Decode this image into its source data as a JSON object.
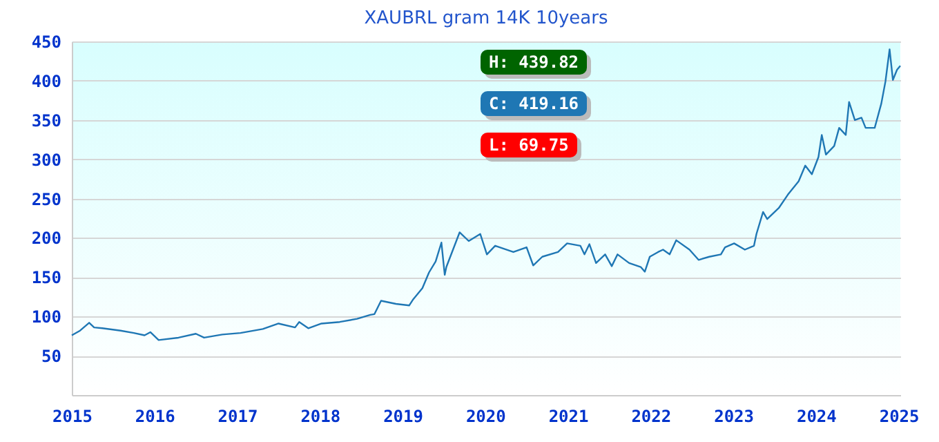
{
  "chart_data": {
    "type": "line",
    "title": "XAUBRL gram 14K 10years",
    "annotations": [
      "H: 439.82",
      "C: 419.16",
      "L: 69.75"
    ],
    "x": [
      2015.0,
      2015.1,
      2015.21,
      2015.27,
      2015.37,
      2015.59,
      2015.75,
      2015.88,
      2015.95,
      2016.05,
      2016.29,
      2016.5,
      2016.6,
      2016.82,
      2017.04,
      2017.31,
      2017.5,
      2017.7,
      2017.75,
      2017.86,
      2018.02,
      2018.24,
      2018.45,
      2018.61,
      2018.66,
      2018.74,
      2018.92,
      2019.08,
      2019.13,
      2019.24,
      2019.32,
      2019.4,
      2019.47,
      2019.51,
      2019.53,
      2019.69,
      2019.8,
      2019.94,
      2020.02,
      2020.12,
      2020.34,
      2020.5,
      2020.58,
      2020.69,
      2020.88,
      2020.99,
      2021.15,
      2021.2,
      2021.26,
      2021.34,
      2021.45,
      2021.53,
      2021.6,
      2021.74,
      2021.88,
      2021.93,
      2021.99,
      2022.09,
      2022.15,
      2022.23,
      2022.31,
      2022.47,
      2022.58,
      2022.71,
      2022.85,
      2022.9,
      2023.01,
      2023.14,
      2023.25,
      2023.28,
      2023.36,
      2023.41,
      2023.55,
      2023.66,
      2023.79,
      2023.87,
      2023.95,
      2024.03,
      2024.07,
      2024.12,
      2024.22,
      2024.28,
      2024.36,
      2024.4,
      2024.47,
      2024.55,
      2024.6,
      2024.71,
      2024.79,
      2024.84,
      2024.89,
      2024.93,
      2024.98,
      2025.02
    ],
    "series": [
      {
        "color": "#1f77b4",
        "values": [
          76,
          82,
          92,
          86,
          85,
          82,
          79,
          76,
          80,
          70,
          73,
          78,
          73,
          77,
          79,
          84,
          91,
          86,
          93,
          85,
          91,
          93,
          97,
          102,
          103,
          120,
          116,
          114,
          122,
          136,
          156,
          170,
          194,
          153,
          163,
          207,
          196,
          205,
          179,
          190,
          182,
          188,
          165,
          176,
          182,
          193,
          190,
          179,
          192,
          168,
          179,
          164,
          179,
          168,
          163,
          157,
          176,
          182,
          185,
          179,
          197,
          185,
          172,
          176,
          179,
          188,
          193,
          185,
          190,
          205,
          233,
          224,
          238,
          255,
          272,
          292,
          281,
          303,
          331,
          306,
          317,
          340,
          331,
          373,
          350,
          353,
          340,
          340,
          371,
          399,
          440,
          401,
          414,
          419
        ]
      }
    ],
    "xlim": [
      2015,
      2025.02
    ],
    "xticks": [
      2015,
      2016,
      2017,
      2018,
      2019,
      2020,
      2021,
      2022,
      2023,
      2024,
      2025
    ],
    "ylim": [
      0,
      450
    ],
    "yticks": [
      50,
      100,
      150,
      200,
      250,
      300,
      350,
      400,
      450
    ],
    "grid": "y"
  }
}
